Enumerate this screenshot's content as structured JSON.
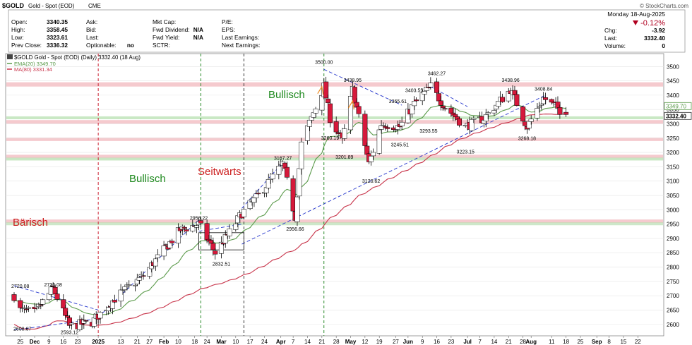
{
  "header": {
    "symbol": "$GOLD",
    "name": "Gold - Spot (EOD)",
    "exchange": "CME",
    "watermark": "© StockCharts.com",
    "date_line": "Monday  18-Aug-2025",
    "change_pct": "-0.12%",
    "quote_left": [
      {
        "label": "Open:",
        "value": "3340.35"
      },
      {
        "label": "High:",
        "value": "3358.45"
      },
      {
        "label": "Low:",
        "value": "3323.61"
      },
      {
        "label": "Prev Close:",
        "value": "3336.32"
      }
    ],
    "quote_mid": [
      {
        "label": "Ask:",
        "value": ""
      },
      {
        "label": "Bid:",
        "value": ""
      },
      {
        "label": "Last:",
        "value": ""
      },
      {
        "label": "Optionable:",
        "value": "no"
      }
    ],
    "quote_mid2": [
      {
        "label": "Mkt Cap:",
        "value": ""
      },
      {
        "label": "Fwd Dividend:",
        "value": "N/A"
      },
      {
        "label": "Fwd Yield:",
        "value": "N/A"
      },
      {
        "label": "SCTR:",
        "value": ""
      }
    ],
    "quote_mid3": [
      {
        "label": "P/E:",
        "value": ""
      },
      {
        "label": "EPS:",
        "value": ""
      },
      {
        "label": "Last Earnings:",
        "value": ""
      },
      {
        "label": "Next Earnings:",
        "value": ""
      }
    ],
    "quote_right": [
      {
        "label": "Chg:",
        "value": "-3.92"
      },
      {
        "label": "Last:",
        "value": "3332.40"
      },
      {
        "label": "Volume:",
        "value": "0"
      }
    ]
  },
  "legend": {
    "line1": "$GOLD Gold - Spot (EOD) (Daily) 3332.40 (18 Aug)",
    "line2": "EMA(20) 3349.70",
    "line3": "MA(80) 3331.34"
  },
  "colors": {
    "up": "#ffffff",
    "down": "#d6193b",
    "wick": "#000000",
    "ema": "#5a9a4a",
    "ma": "#c8344a",
    "resistance": "#f2b8bd",
    "support": "#b7e0b0",
    "trend": "#2233cc",
    "bull_text": "#1f8a1f",
    "bear_text": "#cc1f1f",
    "neg": "#b00020"
  },
  "chart_data": {
    "type": "candlestick",
    "title": "$GOLD Gold - Spot (EOD) (Daily)",
    "x_ticks": [
      "25",
      "Dec",
      "9",
      "16",
      "23",
      "2025",
      "13",
      "21",
      "27",
      "Feb",
      "10",
      "18",
      "24",
      "Mar",
      "10",
      "17",
      "24",
      "Apr",
      "7",
      "14",
      "21",
      "28",
      "May",
      "12",
      "19",
      "27",
      "Jun",
      "9",
      "16",
      "23",
      "Jul",
      "7",
      "14",
      "21",
      "28",
      "Aug",
      "11",
      "18",
      "25",
      "Sep",
      "8",
      "15",
      "22"
    ],
    "y_ticks": [
      2600,
      2650,
      2700,
      2750,
      2800,
      2850,
      2900,
      2950,
      3000,
      3050,
      3100,
      3150,
      3200,
      3250,
      3300,
      3350,
      3400,
      3450,
      3500
    ],
    "ylim": [
      2560,
      3545
    ],
    "last_price_labels": [
      "3349.70",
      "3332.40"
    ],
    "price_annotations": [
      "2720.08",
      "2726.08",
      "2608.67",
      "2593.12",
      "2956.22",
      "2832.51",
      "3167.27",
      "2956.66",
      "3500.00",
      "3260.19",
      "3438.95",
      "3365.61",
      "3201.89",
      "3120.62",
      "3245.51",
      "3403.55",
      "3293.55",
      "3462.27",
      "3223.15",
      "3438.96",
      "3408.84",
      "3268.18"
    ],
    "text_annotations": [
      "Bullisch",
      "Bullisch",
      "Seitwärts",
      "Bärisch"
    ],
    "anchors": [
      {
        "d": "2024-11-22",
        "p": 2700
      },
      {
        "d": "2024-11-25",
        "p": 2650
      },
      {
        "d": "2024-12-02",
        "p": 2640
      },
      {
        "d": "2024-12-11",
        "p": 2726
      },
      {
        "d": "2024-12-19",
        "p": 2593
      },
      {
        "d": "2024-12-30",
        "p": 2608
      },
      {
        "d": "2025-01-10",
        "p": 2690
      },
      {
        "d": "2025-01-24",
        "p": 2770
      },
      {
        "d": "2025-02-11",
        "p": 2930
      },
      {
        "d": "2025-02-20",
        "p": 2950
      },
      {
        "d": "2025-02-28",
        "p": 2850
      },
      {
        "d": "2025-03-06",
        "p": 2910
      },
      {
        "d": "2025-03-13",
        "p": 2988
      },
      {
        "d": "2025-03-20",
        "p": 3040
      },
      {
        "d": "2025-04-02",
        "p": 3160
      },
      {
        "d": "2025-04-08",
        "p": 2975
      },
      {
        "d": "2025-04-11",
        "p": 3230
      },
      {
        "d": "2025-04-22",
        "p": 3430
      },
      {
        "d": "2025-04-25",
        "p": 3320
      },
      {
        "d": "2025-05-01",
        "p": 3240
      },
      {
        "d": "2025-05-06",
        "p": 3420
      },
      {
        "d": "2025-05-14",
        "p": 3160
      },
      {
        "d": "2025-05-20",
        "p": 3300
      },
      {
        "d": "2025-05-29",
        "p": 3290
      },
      {
        "d": "2025-06-05",
        "p": 3370
      },
      {
        "d": "2025-06-13",
        "p": 3430
      },
      {
        "d": "2025-06-20",
        "p": 3360
      },
      {
        "d": "2025-06-30",
        "p": 3290
      },
      {
        "d": "2025-07-09",
        "p": 3320
      },
      {
        "d": "2025-07-22",
        "p": 3420
      },
      {
        "d": "2025-07-30",
        "p": 3290
      },
      {
        "d": "2025-08-07",
        "p": 3390
      },
      {
        "d": "2025-08-18",
        "p": 3332
      }
    ],
    "ema20_end": 3349.7,
    "ma80_end": 3331.34
  }
}
